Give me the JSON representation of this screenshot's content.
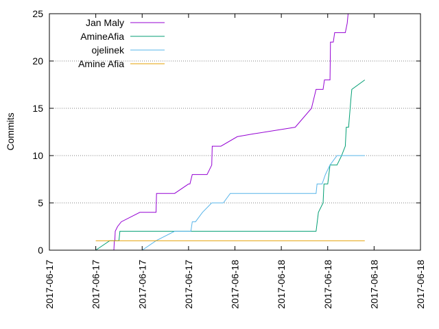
{
  "chart_data": {
    "type": "line",
    "title": "",
    "xlabel": "",
    "ylabel": "Commits",
    "ylim": [
      0,
      25
    ],
    "yticks": [
      0,
      5,
      10,
      15,
      20,
      25
    ],
    "xticks": [
      "2017-06-17",
      "2017-06-17",
      "2017-06-17",
      "2017-06-17",
      "2017-06-18",
      "2017-06-18",
      "2017-06-18",
      "2017-06-18",
      "2017-06-18"
    ],
    "xlim": [
      0,
      8
    ],
    "grid": "horizontal dotted",
    "legend_position": "top-left",
    "series": [
      {
        "name": "Jan Maly",
        "color": "#9400d3",
        "points": [
          [
            1.35,
            0
          ],
          [
            1.39,
            0
          ],
          [
            1.4,
            1
          ],
          [
            1.41,
            1
          ],
          [
            1.42,
            2
          ],
          [
            1.47,
            2.5
          ],
          [
            1.55,
            3
          ],
          [
            1.95,
            4
          ],
          [
            2.3,
            4
          ],
          [
            2.31,
            6
          ],
          [
            2.7,
            6
          ],
          [
            3.0,
            7
          ],
          [
            3.03,
            7
          ],
          [
            3.08,
            8
          ],
          [
            3.4,
            8
          ],
          [
            3.5,
            9
          ],
          [
            3.51,
            11
          ],
          [
            3.7,
            11
          ],
          [
            4.05,
            12
          ],
          [
            4.4,
            12.3
          ],
          [
            5.3,
            13
          ],
          [
            5.65,
            15
          ],
          [
            5.75,
            17
          ],
          [
            5.9,
            17
          ],
          [
            5.93,
            18
          ],
          [
            6.05,
            18
          ],
          [
            6.06,
            22
          ],
          [
            6.12,
            22
          ],
          [
            6.15,
            23
          ],
          [
            6.38,
            23
          ],
          [
            6.42,
            24
          ],
          [
            6.44,
            25
          ]
        ]
      },
      {
        "name": "AmineAfia",
        "color": "#009e73",
        "points": [
          [
            1.0,
            0
          ],
          [
            1.3,
            1
          ],
          [
            1.5,
            1
          ],
          [
            1.52,
            2
          ],
          [
            5.75,
            2
          ],
          [
            5.8,
            4
          ],
          [
            5.9,
            5
          ],
          [
            5.92,
            7
          ],
          [
            6.0,
            7
          ],
          [
            6.05,
            9
          ],
          [
            6.2,
            9
          ],
          [
            6.3,
            10
          ],
          [
            6.38,
            11
          ],
          [
            6.4,
            13
          ],
          [
            6.45,
            13
          ],
          [
            6.5,
            16
          ],
          [
            6.52,
            17
          ],
          [
            6.8,
            18
          ]
        ]
      },
      {
        "name": "ojelinek",
        "color": "#56b4e9",
        "points": [
          [
            2.0,
            0
          ],
          [
            2.3,
            1
          ],
          [
            2.7,
            2
          ],
          [
            3.05,
            2
          ],
          [
            3.08,
            3
          ],
          [
            3.15,
            3
          ],
          [
            3.3,
            4
          ],
          [
            3.5,
            5
          ],
          [
            3.75,
            5
          ],
          [
            3.9,
            6
          ],
          [
            5.75,
            6
          ],
          [
            5.77,
            7
          ],
          [
            5.88,
            7
          ],
          [
            5.95,
            8
          ],
          [
            6.05,
            9
          ],
          [
            6.2,
            10
          ],
          [
            6.8,
            10
          ]
        ]
      },
      {
        "name": "Amine Afia",
        "color": "#e69f00",
        "points": [
          [
            1.0,
            1
          ],
          [
            6.8,
            1
          ]
        ]
      }
    ]
  }
}
